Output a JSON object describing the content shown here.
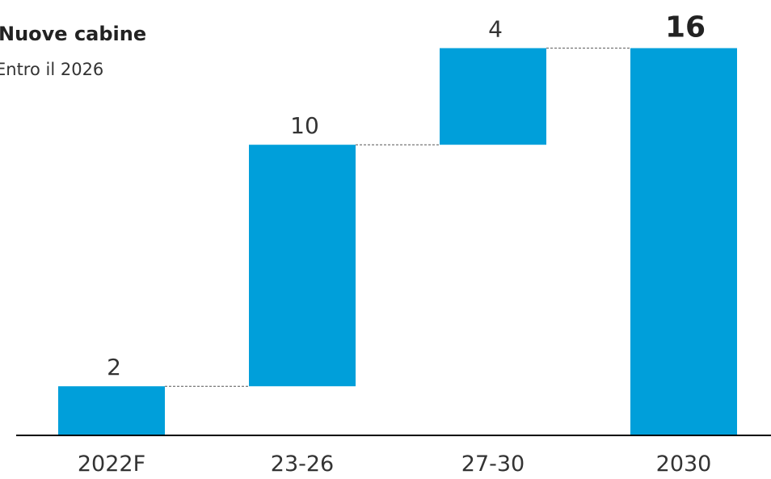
{
  "chart_data": {
    "type": "bar",
    "variant": "waterfall",
    "title": "Nuove cabine",
    "subtitle": "Entro il 2026",
    "categories": [
      "2022F",
      "23-26",
      "27-30",
      "2030"
    ],
    "values": [
      2,
      10,
      4,
      16
    ],
    "bar_kinds": [
      "total",
      "increment",
      "increment",
      "total"
    ],
    "data_labels": [
      "2",
      "10",
      "4",
      "16"
    ],
    "emphasized_label_index": 3,
    "ylim": [
      0,
      16
    ],
    "grid": false,
    "connector_lines": true,
    "colors": {
      "bar": "#009fda",
      "connector": "#555555",
      "axis": "#000000",
      "text": "#333333",
      "emphasis_text": "#222222"
    }
  }
}
